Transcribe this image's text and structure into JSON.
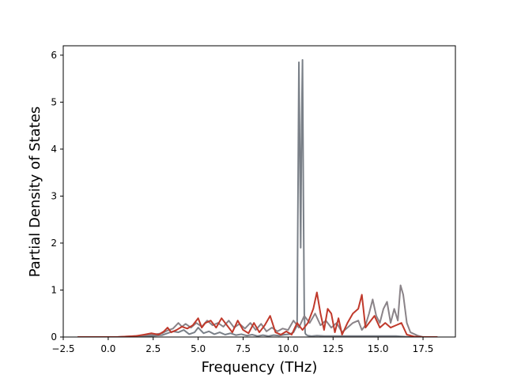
{
  "chart_data": {
    "type": "line",
    "title": "",
    "xlabel": "Frequency (THz)",
    "ylabel": "Partial Density of States",
    "xlim": [
      -2.5,
      19.3
    ],
    "ylim": [
      0,
      6.2
    ],
    "xticks": [
      -2.5,
      0.0,
      2.5,
      5.0,
      7.5,
      10.0,
      12.5,
      15.0,
      17.5
    ],
    "xtick_labels": [
      "−2.5",
      "0.0",
      "2.5",
      "5.0",
      "7.5",
      "10.0",
      "12.5",
      "15.0",
      "17.5"
    ],
    "yticks": [
      0,
      1,
      2,
      3,
      4,
      5,
      6
    ],
    "ytick_labels": [
      "0",
      "1",
      "2",
      "3",
      "4",
      "5",
      "6"
    ],
    "grid": false,
    "legend": "none",
    "series": [
      {
        "color": "#7a8088",
        "x": [
          -1.7,
          0.5,
          1.5,
          2.3,
          3.0,
          3.3,
          3.6,
          3.9,
          4.2,
          4.5,
          4.8,
          5.0,
          5.3,
          5.6,
          5.9,
          6.2,
          6.5,
          6.8,
          7.1,
          7.4,
          7.7,
          8.0,
          8.3,
          8.6,
          8.9,
          9.2,
          9.5,
          9.8,
          10.1,
          10.3,
          10.5,
          10.6,
          10.65,
          10.7,
          10.75,
          10.8,
          10.85,
          10.9,
          10.95,
          11.0,
          11.1,
          11.3,
          11.6,
          12.0,
          12.4,
          12.8,
          13.2,
          13.6,
          14.0,
          14.4,
          14.8,
          15.2,
          15.6,
          16.0,
          16.4,
          16.8,
          17.5,
          18.3
        ],
        "y": [
          0,
          0,
          0.01,
          0.02,
          0.04,
          0.08,
          0.12,
          0.1,
          0.15,
          0.06,
          0.1,
          0.2,
          0.08,
          0.12,
          0.06,
          0.1,
          0.05,
          0.08,
          0.04,
          0.06,
          0.03,
          0.05,
          0.02,
          0.04,
          0.02,
          0.04,
          0.03,
          0.05,
          0.06,
          0.1,
          0.25,
          5.85,
          4.0,
          1.9,
          4.5,
          5.9,
          3.0,
          0.5,
          0.08,
          0.05,
          0.03,
          0.02,
          0.03,
          0.02,
          0.02,
          0.02,
          0.02,
          0.02,
          0.02,
          0.02,
          0.02,
          0.02,
          0.02,
          0.02,
          0.01,
          0.0,
          0,
          0
        ]
      },
      {
        "color": "#8a8388",
        "x": [
          -1.7,
          0.5,
          1.5,
          2.3,
          3.0,
          3.3,
          3.6,
          3.9,
          4.1,
          4.3,
          4.6,
          4.9,
          5.2,
          5.5,
          5.8,
          6.1,
          6.4,
          6.7,
          7.0,
          7.3,
          7.6,
          7.9,
          8.2,
          8.5,
          8.8,
          9.1,
          9.4,
          9.7,
          10.0,
          10.3,
          10.6,
          10.9,
          11.2,
          11.5,
          11.8,
          12.1,
          12.4,
          12.7,
          13.0,
          13.3,
          13.6,
          13.9,
          14.1,
          14.3,
          14.5,
          14.7,
          14.9,
          15.1,
          15.3,
          15.5,
          15.7,
          15.9,
          16.1,
          16.25,
          16.4,
          16.6,
          16.8,
          17.2,
          17.5,
          18.3
        ],
        "y": [
          0,
          0,
          0.02,
          0.04,
          0.08,
          0.14,
          0.18,
          0.3,
          0.22,
          0.28,
          0.2,
          0.3,
          0.22,
          0.35,
          0.25,
          0.3,
          0.22,
          0.35,
          0.2,
          0.28,
          0.18,
          0.3,
          0.15,
          0.28,
          0.12,
          0.2,
          0.12,
          0.18,
          0.15,
          0.35,
          0.2,
          0.45,
          0.3,
          0.5,
          0.25,
          0.35,
          0.2,
          0.3,
          0.1,
          0.2,
          0.3,
          0.35,
          0.15,
          0.25,
          0.5,
          0.8,
          0.45,
          0.3,
          0.6,
          0.75,
          0.3,
          0.6,
          0.35,
          1.1,
          0.9,
          0.3,
          0.1,
          0.03,
          0,
          0
        ]
      },
      {
        "color": "#c0392b",
        "x": [
          -1.7,
          0.5,
          1.5,
          2.0,
          2.4,
          2.8,
          3.1,
          3.3,
          3.5,
          3.8,
          4.1,
          4.4,
          4.7,
          5.0,
          5.2,
          5.4,
          5.7,
          6.0,
          6.3,
          6.6,
          6.9,
          7.2,
          7.5,
          7.8,
          8.1,
          8.4,
          8.7,
          9.0,
          9.3,
          9.6,
          9.9,
          10.2,
          10.5,
          10.8,
          11.1,
          11.4,
          11.6,
          11.8,
          12.0,
          12.2,
          12.4,
          12.6,
          12.8,
          13.0,
          13.3,
          13.6,
          13.9,
          14.1,
          14.3,
          14.5,
          14.8,
          15.1,
          15.4,
          15.7,
          16.0,
          16.3,
          16.6,
          17.0,
          17.5,
          18.3
        ],
        "y": [
          0,
          0,
          0.02,
          0.05,
          0.08,
          0.05,
          0.12,
          0.2,
          0.1,
          0.15,
          0.22,
          0.18,
          0.25,
          0.4,
          0.2,
          0.3,
          0.35,
          0.2,
          0.4,
          0.25,
          0.1,
          0.35,
          0.15,
          0.08,
          0.3,
          0.1,
          0.25,
          0.45,
          0.1,
          0.05,
          0.12,
          0.05,
          0.3,
          0.15,
          0.3,
          0.6,
          0.95,
          0.5,
          0.15,
          0.6,
          0.5,
          0.1,
          0.4,
          0.05,
          0.3,
          0.5,
          0.6,
          0.9,
          0.2,
          0.3,
          0.45,
          0.2,
          0.3,
          0.2,
          0.25,
          0.3,
          0.05,
          0.01,
          0,
          0
        ]
      }
    ]
  }
}
